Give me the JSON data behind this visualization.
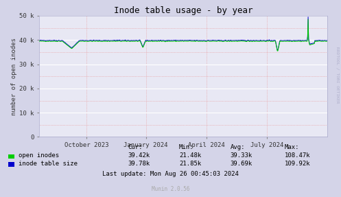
{
  "title": "Inode table usage - by year",
  "ylabel": "number of open inodes",
  "bg_color": "#d4d4e8",
  "plot_bg_color": "#e8e8f4",
  "ylim": [
    0,
    50000
  ],
  "yticks": [
    0,
    10000,
    20000,
    30000,
    40000,
    50000
  ],
  "ytick_labels": [
    "0",
    "10 k",
    "20 k",
    "30 k",
    "40 k",
    "50 k"
  ],
  "xtick_labels": [
    "October 2023",
    "January 2024",
    "April 2024",
    "July 2024"
  ],
  "xtick_positions": [
    0.165,
    0.37,
    0.58,
    0.79
  ],
  "open_inodes_color": "#00cc00",
  "inode_table_color": "#0000cc",
  "legend_labels": [
    "open inodes",
    "inode table size"
  ],
  "cur_label": "Cur:",
  "min_label": "Min:",
  "avg_label": "Avg:",
  "max_label": "Max:",
  "open_inodes_cur": "39.42k",
  "open_inodes_min": "21.48k",
  "open_inodes_avg": "39.33k",
  "open_inodes_max": "108.47k",
  "inode_table_cur": "39.78k",
  "inode_table_min": "21.85k",
  "inode_table_avg": "39.69k",
  "inode_table_max": "109.92k",
  "last_update": "Last update: Mon Aug 26 00:45:03 2024",
  "munin_version": "Munin 2.0.56",
  "watermark": "RRDTOOL / TOBI OETIKER"
}
